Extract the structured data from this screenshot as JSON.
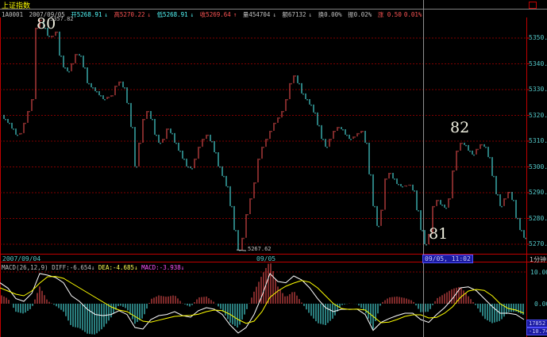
{
  "header": {
    "title": "上证指数",
    "code": "1A0001",
    "date": "2007/09/05",
    "open": "开5268.91",
    "high": "高5270.22",
    "low": "低5268.91",
    "close": "收5269.64",
    "volume": "量454704",
    "amount": "额67132",
    "turnover": "换0.00%",
    "amplitude": "振0.02%",
    "change": "涨 0.50",
    "change_pct": "0.01%"
  },
  "annotations": {
    "a80": "80",
    "a81": "81",
    "a82": "82",
    "high_label": "5357.82",
    "low_label": "5267.62"
  },
  "x_axis": {
    "start": "2007/09/04",
    "mid": "09/05",
    "cursor": "09/05, 11:02"
  },
  "period": "1分钟",
  "macd_header": {
    "name": "MACD(26,12,9)",
    "diff": "DIFF:-6.654",
    "dea": "DEA:-4.685",
    "macd": "MACD:-3.938"
  },
  "macd_axis": {
    "top": "10.00",
    "zero": "0.00",
    "box1": "17852",
    "box2": "-10.74"
  },
  "colors": {
    "up": "#fc5454",
    "down": "#54fcfc",
    "diff": "#ffffff",
    "dea": "#ffff00",
    "grid": "#800000"
  },
  "chart_data": [
    {
      "type": "line",
      "title": "上证指数",
      "ylim": [
        5265,
        5360
      ],
      "yticks": [
        "5350.0",
        "5340.0",
        "5330.0",
        "5320.0",
        "5310.0",
        "5300.0",
        "5290.0",
        "5280.0",
        "5270.0"
      ],
      "grid": true,
      "close": [
        5320.2,
        5318.6,
        5317.1,
        5314.9,
        5312.5,
        5313.1,
        5317.1,
        5321.7,
        5326.3,
        5354.0,
        5357.1,
        5354.0,
        5350.9,
        5350.9,
        5352.5,
        5343.2,
        5338.6,
        5337.1,
        5340.2,
        5343.8,
        5343.2,
        5338.6,
        5332.5,
        5330.9,
        5329.4,
        5327.8,
        5326.3,
        5327.2,
        5327.8,
        5331.5,
        5333.1,
        5330.9,
        5324.8,
        5315.5,
        5300.2,
        5309.4,
        5318.6,
        5321.7,
        5318.6,
        5312.5,
        5309.4,
        5310.9,
        5314.9,
        5313.1,
        5309.4,
        5306.3,
        5303.2,
        5300.2,
        5299.5,
        5303.2,
        5307.8,
        5310.9,
        5312.5,
        5310.0,
        5305.7,
        5300.2,
        5296.5,
        5292.5,
        5284.8,
        5275.5,
        5267.8,
        5272.5,
        5281.7,
        5287.8,
        5294.0,
        5303.2,
        5307.8,
        5310.9,
        5314.0,
        5317.1,
        5319.2,
        5321.7,
        5326.3,
        5332.5,
        5335.5,
        5332.5,
        5328.5,
        5326.3,
        5324.2,
        5321.1,
        5316.2,
        5310.9,
        5307.8,
        5310.9,
        5314.0,
        5315.5,
        5314.6,
        5312.5,
        5310.9,
        5311.8,
        5313.1,
        5314.0,
        5309.4,
        5297.1,
        5284.8,
        5277.1,
        5283.4,
        5295.5,
        5297.7,
        5295.5,
        5293.4,
        5292.5,
        5292.8,
        5293.1,
        5290.9,
        5283.2,
        5275.5,
        5270.0,
        5274.0,
        5284.8,
        5287.2,
        5285.4,
        5284.2,
        5287.8,
        5298.6,
        5306.3,
        5309.4,
        5308.5,
        5306.3,
        5304.8,
        5307.0,
        5308.8,
        5307.8,
        5303.8,
        5296.5,
        5289.4,
        5284.8,
        5287.8,
        5290.3,
        5287.2,
        5280.2,
        5275.5,
        5272.5
      ]
    },
    {
      "type": "line",
      "title": "MACD(26,12,9)",
      "ylim": [
        -10.74,
        12
      ],
      "yticks": [
        "10.00",
        "0.00"
      ],
      "series": [
        {
          "name": "DIFF",
          "values": [
            6.6,
            4.9,
            1.6,
            0.75,
            3.25,
            9.5,
            9,
            8.25,
            6.6,
            2.5,
            0.75,
            -1.75,
            -3.4,
            -3.75,
            -3.4,
            -2.2,
            -3.4,
            -7.5,
            -8,
            -5,
            -3.75,
            -3.4,
            -2.5,
            -3.75,
            -4.25,
            -2.2,
            -1.25,
            -1.75,
            -3.4,
            -6.75,
            -9.25,
            -7.5,
            -3.4,
            2.5,
            9.5,
            7,
            6.6,
            8.75,
            7.5,
            5,
            1.6,
            -1.25,
            -2.5,
            -1.75,
            -1.75,
            -1.75,
            -3.4,
            -8.4,
            -5.9,
            -4.7,
            -3.75,
            -3,
            -3,
            -5,
            -5.9,
            -3.4,
            -1.25,
            1.6,
            5,
            5.3,
            4.1,
            1.6,
            -0.9,
            -3,
            -3,
            -3.4,
            -5
          ]
        },
        {
          "name": "DEA",
          "values": [
            5,
            4,
            3,
            2.5,
            4,
            6.5,
            8.5,
            8.6,
            8,
            6.5,
            5,
            3.5,
            2,
            0.5,
            -1,
            -2,
            -2.5,
            -4,
            -5.5,
            -5.8,
            -5.2,
            -4.6,
            -4,
            -3.8,
            -3.7,
            -3.3,
            -2.5,
            -2,
            -2.2,
            -3.4,
            -5,
            -6.2,
            -5.5,
            -2.5,
            2,
            4,
            5.5,
            6.5,
            7.3,
            6.8,
            5,
            2.5,
            0,
            -1.5,
            -1.8,
            -1.7,
            -2,
            -4,
            -6,
            -5.8,
            -5,
            -4,
            -3.5,
            -3.5,
            -4.5,
            -4.3,
            -3,
            -1,
            2,
            4,
            4.5,
            4.2,
            2.5,
            0,
            -1.5,
            -2,
            -3
          ]
        }
      ]
    }
  ]
}
